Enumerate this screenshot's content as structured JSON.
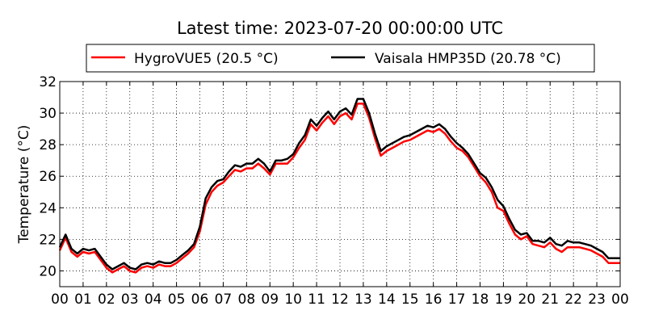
{
  "chart_data": {
    "type": "line",
    "title": "Latest time: 2023-07-20 00:00:00 UTC",
    "xlabel": "",
    "ylabel": "Temperature (°C)",
    "xlim": [
      0,
      24
    ],
    "ylim": [
      19,
      32
    ],
    "x_ticks": [
      "00",
      "01",
      "02",
      "03",
      "04",
      "05",
      "06",
      "07",
      "08",
      "09",
      "10",
      "11",
      "12",
      "13",
      "14",
      "15",
      "16",
      "17",
      "18",
      "19",
      "20",
      "21",
      "22",
      "23",
      "00"
    ],
    "y_ticks": [
      20,
      22,
      24,
      26,
      28,
      30,
      32
    ],
    "grid": true,
    "legend_position": "top",
    "x": [
      0.0,
      0.25,
      0.5,
      0.75,
      1.0,
      1.25,
      1.5,
      1.75,
      2.0,
      2.25,
      2.5,
      2.75,
      3.0,
      3.25,
      3.5,
      3.75,
      4.0,
      4.25,
      4.5,
      4.75,
      5.0,
      5.25,
      5.5,
      5.75,
      6.0,
      6.25,
      6.5,
      6.75,
      7.0,
      7.25,
      7.5,
      7.75,
      8.0,
      8.25,
      8.5,
      8.75,
      9.0,
      9.25,
      9.5,
      9.75,
      10.0,
      10.25,
      10.5,
      10.75,
      11.0,
      11.25,
      11.5,
      11.75,
      12.0,
      12.25,
      12.5,
      12.75,
      13.0,
      13.25,
      13.5,
      13.75,
      14.0,
      14.25,
      14.5,
      14.75,
      15.0,
      15.25,
      15.5,
      15.75,
      16.0,
      16.25,
      16.5,
      16.75,
      17.0,
      17.25,
      17.5,
      17.75,
      18.0,
      18.25,
      18.5,
      18.75,
      19.0,
      19.25,
      19.5,
      19.75,
      20.0,
      20.25,
      20.5,
      20.75,
      21.0,
      21.25,
      21.5,
      21.75,
      22.0,
      22.25,
      22.5,
      22.75,
      23.0,
      23.25,
      23.5,
      23.75,
      24.0
    ],
    "series": [
      {
        "name": "HygroVUE5 (20.5 °C)",
        "color": "#ff0000",
        "values": [
          21.3,
          22.1,
          21.2,
          20.9,
          21.2,
          21.1,
          21.2,
          20.7,
          20.2,
          19.9,
          20.1,
          20.3,
          20.0,
          19.9,
          20.2,
          20.3,
          20.2,
          20.4,
          20.3,
          20.3,
          20.5,
          20.8,
          21.1,
          21.5,
          22.5,
          24.2,
          25.0,
          25.4,
          25.6,
          26.0,
          26.4,
          26.3,
          26.5,
          26.5,
          26.8,
          26.5,
          26.1,
          26.8,
          26.8,
          26.8,
          27.2,
          27.8,
          28.3,
          29.3,
          28.9,
          29.4,
          29.8,
          29.3,
          29.8,
          30.0,
          29.6,
          30.6,
          30.6,
          29.7,
          28.4,
          27.3,
          27.6,
          27.8,
          28.0,
          28.2,
          28.3,
          28.5,
          28.7,
          28.9,
          28.8,
          29.0,
          28.7,
          28.2,
          27.8,
          27.6,
          27.2,
          26.6,
          26.0,
          25.6,
          25.0,
          24.0,
          23.8,
          23.0,
          22.3,
          22.0,
          22.2,
          21.7,
          21.6,
          21.5,
          21.8,
          21.4,
          21.2,
          21.5,
          21.5,
          21.5,
          21.4,
          21.3,
          21.1,
          20.9,
          20.5,
          20.5,
          20.5
        ]
      },
      {
        "name": "Vaisala HMP35D (20.78 °C)",
        "color": "#000000",
        "values": [
          21.5,
          22.3,
          21.4,
          21.1,
          21.4,
          21.3,
          21.4,
          20.9,
          20.4,
          20.1,
          20.3,
          20.5,
          20.2,
          20.1,
          20.4,
          20.5,
          20.4,
          20.6,
          20.5,
          20.5,
          20.7,
          21.0,
          21.3,
          21.7,
          22.8,
          24.6,
          25.3,
          25.7,
          25.8,
          26.3,
          26.7,
          26.6,
          26.8,
          26.8,
          27.1,
          26.8,
          26.3,
          27.0,
          27.0,
          27.1,
          27.4,
          28.1,
          28.6,
          29.6,
          29.2,
          29.7,
          30.1,
          29.6,
          30.1,
          30.3,
          29.9,
          30.9,
          30.9,
          30.0,
          28.7,
          27.6,
          27.9,
          28.1,
          28.3,
          28.5,
          28.6,
          28.8,
          29.0,
          29.2,
          29.1,
          29.3,
          29.0,
          28.5,
          28.1,
          27.8,
          27.4,
          26.8,
          26.2,
          25.9,
          25.3,
          24.5,
          24.1,
          23.3,
          22.6,
          22.3,
          22.4,
          21.9,
          21.9,
          21.8,
          22.1,
          21.7,
          21.6,
          21.9,
          21.8,
          21.8,
          21.7,
          21.6,
          21.4,
          21.2,
          20.8,
          20.8,
          20.8
        ]
      }
    ]
  }
}
